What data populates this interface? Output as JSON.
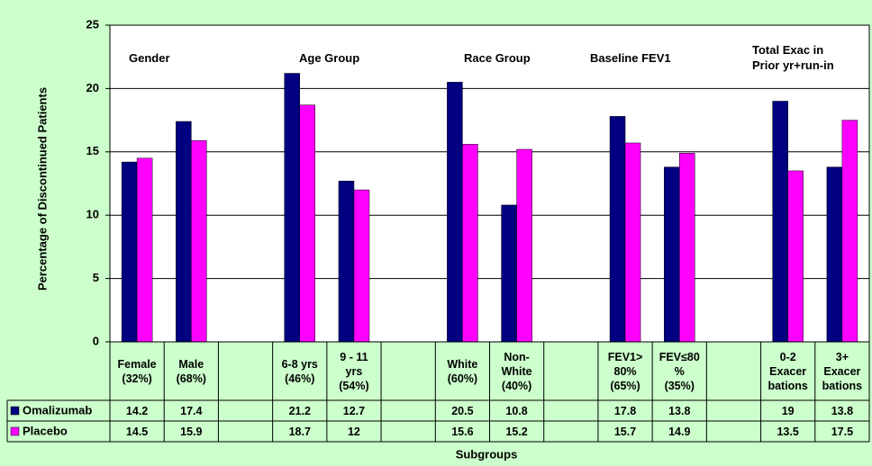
{
  "chart_data": {
    "type": "bar",
    "y_label": "Percentage of Discontinued Patients",
    "x_label": "Subgroups",
    "group_labels": [
      "Gender",
      "Age Group",
      "Race Group",
      "Baseline FEV1",
      "Total Exac in\nPrior yr+run-in"
    ],
    "categories": [
      "Female\n(32%)",
      "Male\n(68%)",
      null,
      "6-8 yrs\n(46%)",
      "9 - 11\nyrs\n(54%)",
      null,
      "White\n(60%)",
      "Non-\nWhite\n(40%)",
      null,
      "FEV1>\n80%\n(65%)",
      "FEV≤80\n%\n(35%)",
      null,
      "0-2\nExacer\nbations",
      "3+\nExacer\nbations"
    ],
    "series": [
      {
        "name": "Omalizumab",
        "color": "#000080",
        "values": [
          14.2,
          17.4,
          null,
          21.2,
          12.7,
          null,
          20.5,
          10.8,
          null,
          17.8,
          13.8,
          null,
          19,
          13.8
        ]
      },
      {
        "name": "Placebo",
        "color": "#ff00ff",
        "values": [
          14.5,
          15.9,
          null,
          18.7,
          12,
          null,
          15.6,
          15.2,
          null,
          15.7,
          14.9,
          null,
          13.5,
          17.5
        ]
      }
    ],
    "ylim": [
      0,
      25
    ],
    "yticks": [
      0,
      5,
      10,
      15,
      20,
      25
    ],
    "grid": true
  }
}
